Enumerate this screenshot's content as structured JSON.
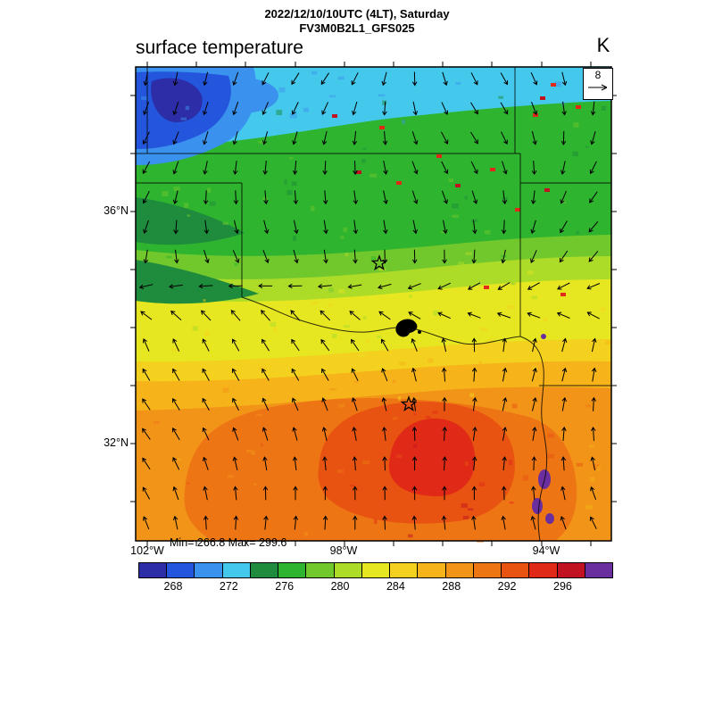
{
  "header": {
    "datetime_line": "2022/12/10/10UTC (4LT), Saturday",
    "model_line": "FV3M0B2L1_GFS025",
    "variable_title": "surface temperature",
    "units": "K"
  },
  "stats": {
    "text": "Min= 266.8 Max= 299.6",
    "min": 266.8,
    "max": 299.6
  },
  "vector_legend": {
    "value": "8"
  },
  "axes": {
    "lat": [
      "36°N",
      "32°N"
    ],
    "lon": [
      "102°W",
      "98°W",
      "94°W"
    ]
  },
  "colorbar": {
    "ticks": [
      "268",
      "272",
      "276",
      "280",
      "284",
      "288",
      "292",
      "296"
    ],
    "tick_values": [
      268,
      272,
      276,
      280,
      284,
      288,
      292,
      296
    ],
    "colors": [
      "#2d2da8",
      "#2356dc",
      "#3b92ee",
      "#44c8ec",
      "#1e8c3c",
      "#2eb42e",
      "#70c82d",
      "#acdc28",
      "#e6e621",
      "#f4d11e",
      "#f6b31a",
      "#f29418",
      "#ee7514",
      "#e85311",
      "#e02a17",
      "#c01220",
      "#6a2e9e"
    ]
  },
  "chart_data": {
    "type": "heatmap",
    "title": "surface temperature",
    "units": "K",
    "valid_time": "2022/12/10/10UTC (4LT), Saturday",
    "model": "FV3M0B2L1_GFS025",
    "min": 266.8,
    "max": 299.6,
    "colorbar_ticks": [
      268,
      272,
      276,
      280,
      284,
      288,
      292,
      296
    ],
    "lon_ticks": [
      "102°W",
      "98°W",
      "94°W"
    ],
    "lat_ticks": [
      "36°N",
      "32°N"
    ],
    "wind_reference": 8,
    "city_star_markers": 2,
    "grid_estimate_K": {
      "order": "rows north to south, columns west to east",
      "rows": [
        [
          270,
          272,
          274,
          276,
          276,
          278,
          278,
          278
        ],
        [
          272,
          274,
          276,
          278,
          278,
          278,
          278,
          278
        ],
        [
          274,
          276,
          278,
          278,
          280,
          278,
          280,
          280
        ],
        [
          276,
          278,
          280,
          282,
          282,
          282,
          282,
          282
        ],
        [
          280,
          282,
          284,
          284,
          286,
          286,
          284,
          284
        ],
        [
          282,
          286,
          288,
          290,
          290,
          292,
          290,
          288
        ],
        [
          284,
          288,
          290,
          292,
          294,
          294,
          292,
          290
        ],
        [
          284,
          288,
          290,
          292,
          294,
          292,
          290,
          288
        ]
      ]
    }
  }
}
